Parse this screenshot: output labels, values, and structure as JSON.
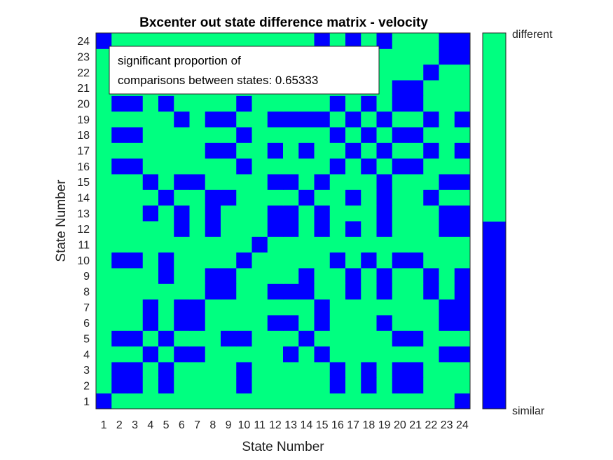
{
  "chart_data": {
    "type": "heatmap",
    "title": "Bxcenter out state difference matrix - velocity",
    "xlabel": "State Number",
    "ylabel": "State Number",
    "x_ticks": [
      "1",
      "2",
      "3",
      "4",
      "5",
      "6",
      "7",
      "8",
      "9",
      "10",
      "11",
      "12",
      "13",
      "14",
      "15",
      "16",
      "17",
      "18",
      "19",
      "20",
      "21",
      "22",
      "23",
      "24"
    ],
    "y_ticks": [
      "1",
      "2",
      "3",
      "4",
      "5",
      "6",
      "7",
      "8",
      "9",
      "10",
      "11",
      "12",
      "13",
      "14",
      "15",
      "16",
      "17",
      "18",
      "19",
      "20",
      "21",
      "22",
      "23",
      "24"
    ],
    "colorbar": {
      "top_label": "different",
      "bottom_label": "similar",
      "colors": {
        "different": "#00ff80",
        "similar": "#0000ff"
      }
    },
    "annotation": {
      "line1": "significant proportion of",
      "line2": "comparisons between states: 0.65333"
    },
    "legend_note": "values: 1 = different, 0 = similar; rows listed from state 1 to state 24, columns state 1 to 24",
    "values": [
      [
        0,
        1,
        1,
        1,
        1,
        1,
        1,
        1,
        1,
        1,
        1,
        1,
        1,
        1,
        1,
        1,
        1,
        1,
        1,
        1,
        1,
        1,
        1,
        0
      ],
      [
        1,
        0,
        0,
        1,
        0,
        1,
        1,
        1,
        1,
        0,
        1,
        1,
        1,
        1,
        1,
        0,
        1,
        0,
        1,
        0,
        0,
        1,
        1,
        1
      ],
      [
        1,
        0,
        0,
        1,
        0,
        1,
        1,
        1,
        1,
        0,
        1,
        1,
        1,
        1,
        1,
        0,
        1,
        0,
        1,
        0,
        0,
        1,
        1,
        1
      ],
      [
        1,
        1,
        1,
        0,
        1,
        0,
        0,
        1,
        1,
        1,
        1,
        1,
        0,
        1,
        0,
        1,
        1,
        1,
        1,
        1,
        1,
        1,
        0,
        0
      ],
      [
        1,
        0,
        0,
        1,
        0,
        1,
        1,
        1,
        0,
        0,
        1,
        1,
        1,
        0,
        1,
        1,
        1,
        1,
        1,
        0,
        0,
        1,
        1,
        1
      ],
      [
        1,
        1,
        1,
        0,
        1,
        0,
        0,
        1,
        1,
        1,
        1,
        0,
        0,
        1,
        0,
        1,
        1,
        1,
        0,
        1,
        1,
        1,
        0,
        0
      ],
      [
        1,
        1,
        1,
        0,
        1,
        0,
        0,
        1,
        1,
        1,
        1,
        1,
        1,
        1,
        0,
        1,
        1,
        1,
        1,
        1,
        1,
        1,
        0,
        0
      ],
      [
        1,
        1,
        1,
        1,
        1,
        1,
        1,
        0,
        0,
        1,
        1,
        0,
        0,
        0,
        1,
        1,
        0,
        1,
        0,
        1,
        1,
        0,
        1,
        0
      ],
      [
        1,
        1,
        1,
        1,
        0,
        1,
        1,
        0,
        0,
        1,
        1,
        1,
        1,
        0,
        1,
        1,
        0,
        1,
        0,
        1,
        1,
        0,
        1,
        0
      ],
      [
        1,
        0,
        0,
        1,
        0,
        1,
        1,
        1,
        1,
        0,
        1,
        1,
        1,
        1,
        1,
        0,
        1,
        0,
        1,
        0,
        0,
        1,
        1,
        1
      ],
      [
        1,
        1,
        1,
        1,
        1,
        1,
        1,
        1,
        1,
        1,
        0,
        1,
        1,
        1,
        1,
        1,
        1,
        1,
        1,
        1,
        1,
        1,
        1,
        1
      ],
      [
        1,
        1,
        1,
        1,
        1,
        0,
        1,
        0,
        1,
        1,
        1,
        0,
        0,
        1,
        0,
        1,
        0,
        1,
        0,
        1,
        1,
        1,
        0,
        0
      ],
      [
        1,
        1,
        1,
        0,
        1,
        0,
        1,
        0,
        1,
        1,
        1,
        0,
        0,
        1,
        0,
        1,
        1,
        1,
        0,
        1,
        1,
        1,
        0,
        0
      ],
      [
        1,
        1,
        1,
        1,
        0,
        1,
        1,
        0,
        0,
        1,
        1,
        1,
        1,
        0,
        1,
        1,
        0,
        1,
        0,
        1,
        1,
        0,
        1,
        1
      ],
      [
        1,
        1,
        1,
        0,
        1,
        0,
        0,
        1,
        1,
        1,
        1,
        0,
        0,
        1,
        0,
        1,
        1,
        1,
        0,
        1,
        1,
        1,
        0,
        0
      ],
      [
        1,
        0,
        0,
        1,
        1,
        1,
        1,
        1,
        1,
        0,
        1,
        1,
        1,
        1,
        1,
        0,
        1,
        0,
        1,
        0,
        0,
        1,
        1,
        1
      ],
      [
        1,
        1,
        1,
        1,
        1,
        1,
        1,
        0,
        0,
        1,
        1,
        0,
        1,
        0,
        1,
        1,
        0,
        1,
        0,
        1,
        1,
        0,
        1,
        0
      ],
      [
        1,
        0,
        0,
        1,
        1,
        1,
        1,
        1,
        1,
        0,
        1,
        1,
        1,
        1,
        1,
        0,
        1,
        0,
        1,
        0,
        0,
        1,
        1,
        1
      ],
      [
        1,
        1,
        1,
        1,
        1,
        0,
        1,
        0,
        0,
        1,
        1,
        0,
        0,
        0,
        0,
        1,
        0,
        1,
        0,
        1,
        1,
        0,
        1,
        0
      ],
      [
        1,
        0,
        0,
        1,
        0,
        1,
        1,
        1,
        1,
        0,
        1,
        1,
        1,
        1,
        1,
        0,
        1,
        0,
        1,
        0,
        0,
        1,
        1,
        1
      ],
      [
        1,
        1,
        1,
        1,
        1,
        1,
        1,
        1,
        1,
        1,
        1,
        1,
        1,
        1,
        1,
        1,
        1,
        1,
        1,
        0,
        0,
        1,
        1,
        1
      ],
      [
        1,
        1,
        1,
        1,
        1,
        1,
        1,
        1,
        1,
        1,
        1,
        1,
        1,
        1,
        1,
        1,
        1,
        1,
        1,
        1,
        1,
        0,
        1,
        1
      ],
      [
        1,
        1,
        1,
        1,
        1,
        1,
        1,
        1,
        1,
        1,
        1,
        1,
        1,
        1,
        1,
        1,
        1,
        1,
        1,
        1,
        1,
        1,
        0,
        0
      ],
      [
        0,
        1,
        1,
        1,
        1,
        1,
        1,
        1,
        1,
        1,
        1,
        1,
        1,
        1,
        0,
        1,
        0,
        1,
        0,
        1,
        1,
        1,
        0,
        0
      ]
    ]
  }
}
